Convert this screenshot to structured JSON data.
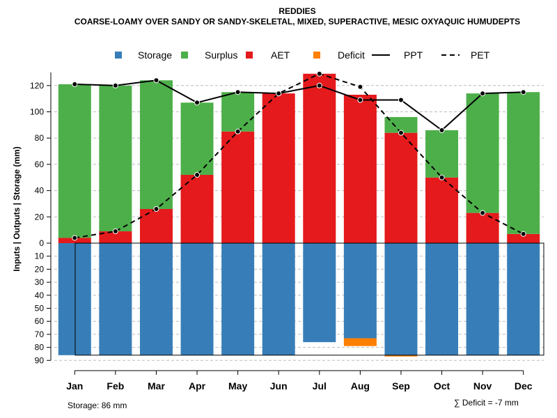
{
  "chart_data": {
    "type": "bar",
    "title": "REDDIES",
    "subtitle": "COARSE-LOAMY OVER SANDY OR SANDY-SKELETAL, MIXED, SUPERACTIVE, MESIC OXYAQUIC HUMUDEPTS",
    "ylabel": "Inputs | Outputs | Storage    (mm)",
    "categories": [
      "Jan",
      "Feb",
      "Mar",
      "Apr",
      "May",
      "Jun",
      "Jul",
      "Aug",
      "Sep",
      "Oct",
      "Nov",
      "Dec"
    ],
    "ylim_upper": [
      0,
      130
    ],
    "ylim_lower": [
      0,
      90
    ],
    "upper_ticks": [
      "0",
      "20",
      "40",
      "60",
      "80",
      "100",
      "120"
    ],
    "lower_ticks": [
      "10",
      "20",
      "30",
      "40",
      "50",
      "60",
      "70",
      "80",
      "90"
    ],
    "legend": [
      {
        "name": "Storage",
        "kind": "box",
        "color": "#377EB8"
      },
      {
        "name": "Surplus",
        "kind": "box",
        "color": "#4DAF4A"
      },
      {
        "name": "AET",
        "kind": "box",
        "color": "#E41A1C"
      },
      {
        "name": "Deficit",
        "kind": "box",
        "color": "#FF7F00"
      },
      {
        "name": "PPT",
        "kind": "solid",
        "color": "#000000"
      },
      {
        "name": "PET",
        "kind": "dashed",
        "color": "#000000"
      }
    ],
    "series": [
      {
        "name": "AET",
        "values": [
          4,
          9,
          26,
          52,
          85,
          114,
          129,
          113,
          84,
          50,
          23,
          7
        ]
      },
      {
        "name": "Surplus",
        "values": [
          117,
          111,
          98,
          55,
          30,
          0,
          0,
          0,
          12,
          36,
          91,
          108
        ]
      },
      {
        "name": "PPT",
        "values": [
          121,
          120,
          124,
          107,
          115,
          114,
          120,
          109,
          109,
          86,
          114,
          115
        ]
      },
      {
        "name": "PET",
        "values": [
          4,
          9,
          26,
          52,
          85,
          114,
          129,
          119,
          84,
          50,
          23,
          7
        ]
      },
      {
        "name": "Storage",
        "values": [
          86,
          86,
          86,
          86,
          86,
          86,
          76,
          73,
          86,
          86,
          86,
          86
        ]
      },
      {
        "name": "Deficit",
        "values": [
          0,
          0,
          0,
          0,
          0,
          0,
          0,
          -6,
          -1,
          0,
          0,
          0
        ]
      }
    ],
    "storage_note": "Storage: 86 mm",
    "deficit_note": "∑ Deficit = -7 mm"
  }
}
